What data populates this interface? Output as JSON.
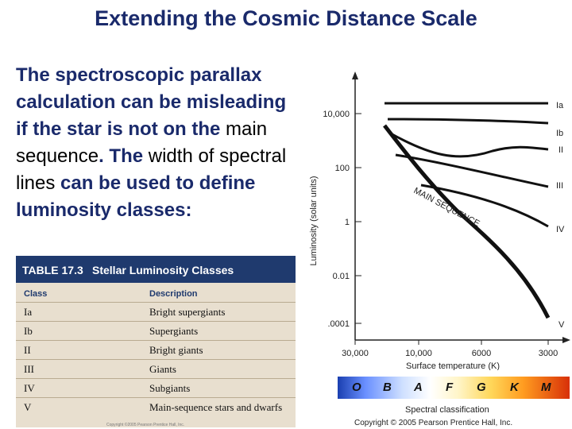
{
  "slide": {
    "title": "Extending the Cosmic Distance Scale",
    "paragraph": {
      "part1": "The spectroscopic parallax calculation can be misleading if the star is not on the ",
      "main_sequence": "main sequence",
      "part2": ". The ",
      "width_of_spectral_lines": "width of spectral lines",
      "part3": " can be used to define ",
      "luminosity_classes": "luminosity classes",
      "part4": ":"
    }
  },
  "table": {
    "number": "TABLE 17.3",
    "caption": "Stellar Luminosity Classes",
    "columns": [
      "Class",
      "Description"
    ],
    "rows": [
      {
        "class": "Ia",
        "description": "Bright supergiants"
      },
      {
        "class": "Ib",
        "description": "Supergiants"
      },
      {
        "class": "II",
        "description": "Bright giants"
      },
      {
        "class": "III",
        "description": "Giants"
      },
      {
        "class": "IV",
        "description": "Subgiants"
      },
      {
        "class": "V",
        "description": "Main-sequence stars and dwarfs"
      }
    ],
    "copyright": "Copyright ©2005 Pearson Prentice Hall, Inc."
  },
  "diagram": {
    "y_axis_label": "Luminosity (solar units)",
    "y_ticks": [
      "10,000",
      "100",
      "1",
      "0.01",
      ".0001"
    ],
    "x_axis_label": "Surface temperature (K)",
    "x_ticks": [
      "30,000",
      "10,000",
      "6000",
      "3000"
    ],
    "curve_labels": [
      "Ia",
      "Ib",
      "II",
      "III",
      "IV",
      "V"
    ],
    "main_sequence_label": "MAIN SEQUENCE",
    "spectral_classes": [
      "O",
      "B",
      "A",
      "F",
      "G",
      "K",
      "M"
    ],
    "spectral_label": "Spectral classification",
    "copyright": "Copyright © 2005 Pearson Prentice Hall, Inc."
  }
}
